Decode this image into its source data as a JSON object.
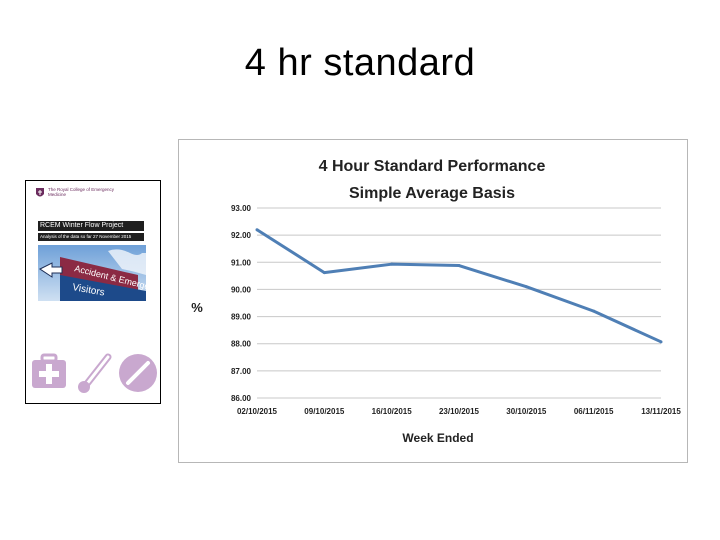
{
  "slide": {
    "title": "4 hr standard"
  },
  "report_cover": {
    "organization": "The Royal College of Emergency Medicine",
    "project_title": "RCEM Winter Flow Project",
    "subtitle": "Analysis of the data so far 27 November 2015",
    "sign_text_1": "Accident & Emergency",
    "sign_text_2": "Visitors"
  },
  "chart_data": {
    "type": "line",
    "title": "4 Hour Standard Performance",
    "subtitle": "Simple Average Basis",
    "xlabel": "Week Ended",
    "ylabel": "%",
    "categories": [
      "02/10/2015",
      "09/10/2015",
      "16/10/2015",
      "23/10/2015",
      "30/10/2015",
      "06/11/2015",
      "13/11/2015"
    ],
    "series": [
      {
        "values": [
          92.2,
          90.62,
          90.93,
          90.88,
          90.1,
          89.2,
          88.07
        ]
      }
    ],
    "ylim": [
      86.0,
      93.0
    ],
    "yticks": [
      "86.00",
      "87.00",
      "88.00",
      "89.00",
      "90.00",
      "91.00",
      "92.00",
      "93.00"
    ],
    "grid": true,
    "colors": {
      "line": "#4f7fb5",
      "grid": "#c8c8c8"
    }
  }
}
